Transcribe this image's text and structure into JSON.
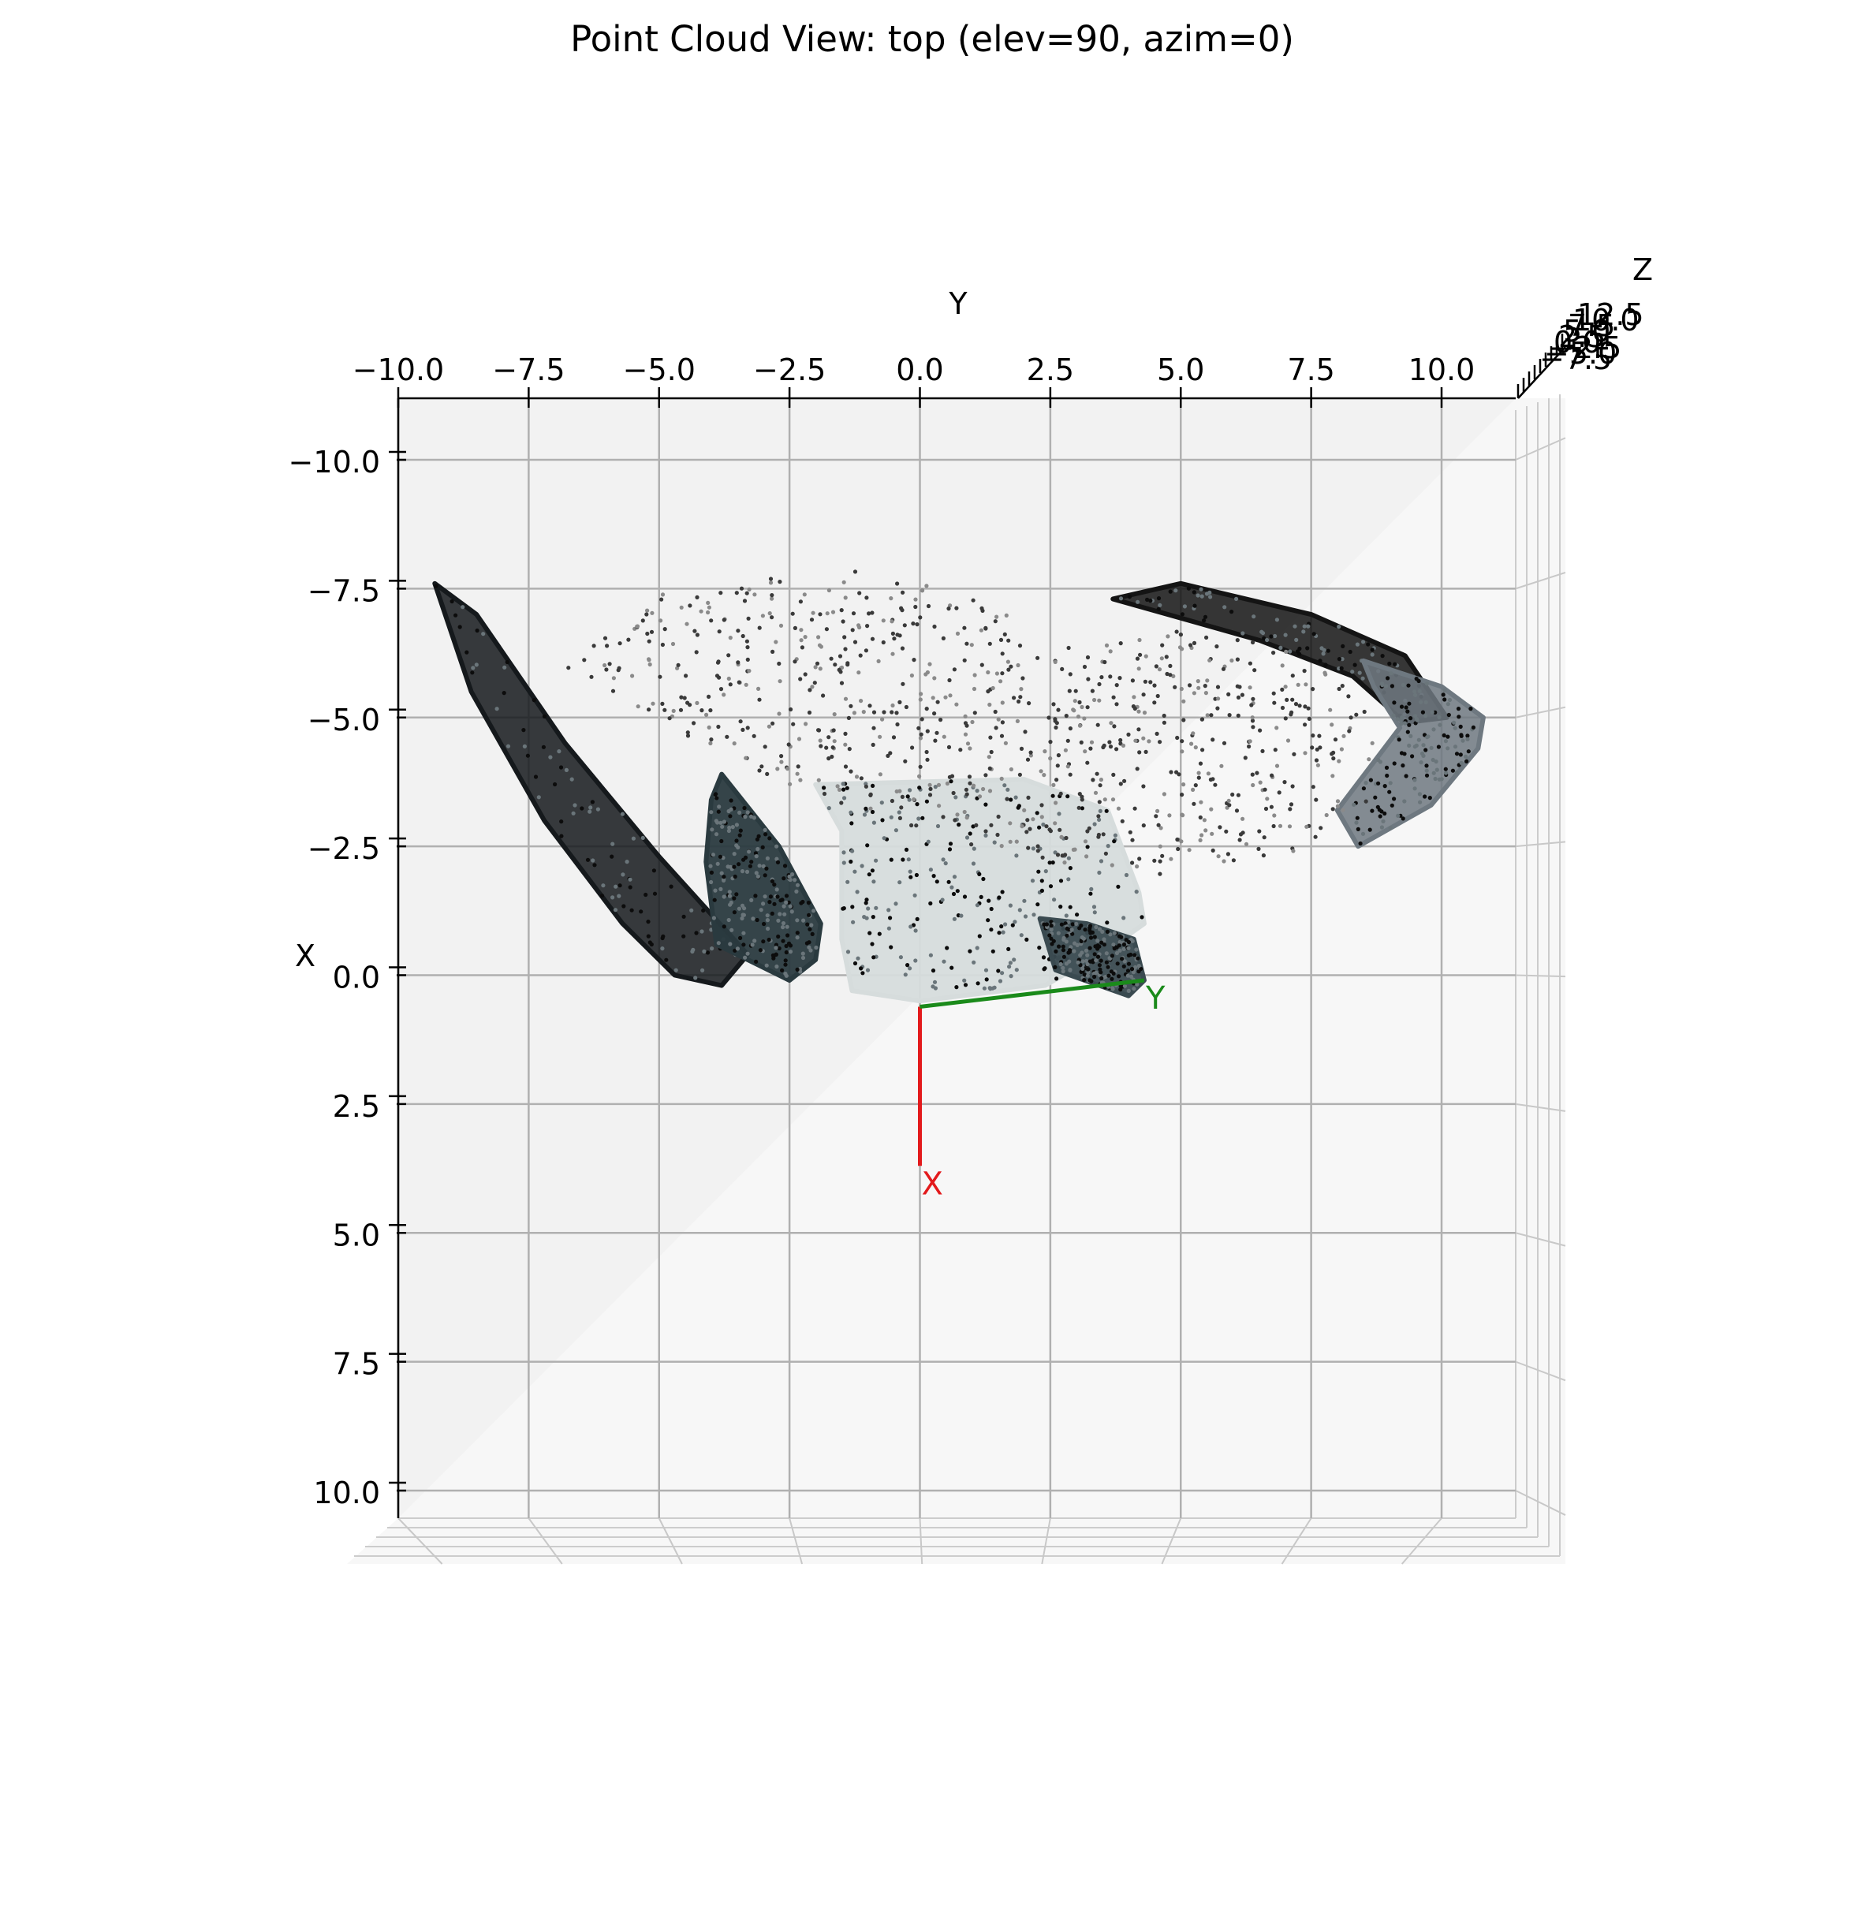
{
  "chart_data": {
    "type": "scatter",
    "title": "Point Cloud View: top (elev=90, azim=0)",
    "view": {
      "elev": 90,
      "azim": 0,
      "projection": "3d-top"
    },
    "grid": true,
    "axes": {
      "y": {
        "label": "Y",
        "ticks": [
          "−10.0",
          "−7.5",
          "−5.0",
          "−2.5",
          "0.0",
          "2.5",
          "5.0",
          "7.5",
          "10.0"
        ],
        "range": [
          -10.0,
          11.6
        ]
      },
      "x": {
        "label": "X",
        "ticks": [
          "−10.0",
          "−7.5",
          "−5.0",
          "−2.5",
          "0.0",
          "2.5",
          "5.0",
          "7.5",
          "10.0"
        ],
        "range": [
          -10.9,
          10.8
        ]
      },
      "z": {
        "label": "Z",
        "tick_labels_visible": [
          "12.5",
          "10.0",
          "7.5",
          "5.0",
          "2.5",
          "0.0",
          "−2.5",
          "−5.0",
          "−7.5"
        ]
      }
    },
    "origin_axes": [
      {
        "label": "X",
        "color": "#e31a1c",
        "from": [
          0,
          0
        ],
        "to": [
          3.7,
          0
        ]
      },
      {
        "label": "Y",
        "color": "#1a8a1a",
        "from": [
          0,
          0
        ],
        "to": [
          0.1,
          4.3
        ]
      }
    ],
    "point_cloud_regions": [
      {
        "name": "left-wall-band",
        "path": [
          [
            -7.6,
            -9.3
          ],
          [
            -5.5,
            -8.6
          ],
          [
            -3.0,
            -7.2
          ],
          [
            -1.0,
            -5.7
          ],
          [
            0.0,
            -4.7
          ],
          [
            0.2,
            -3.8
          ],
          [
            -0.4,
            -3.3
          ],
          [
            -2.3,
            -5.0
          ],
          [
            -4.5,
            -6.8
          ],
          [
            -7.0,
            -8.5
          ]
        ],
        "color": "#15191c",
        "density": "dense"
      },
      {
        "name": "car-left",
        "path": [
          [
            -3.9,
            -3.8
          ],
          [
            -2.5,
            -2.7
          ],
          [
            -1.0,
            -1.9
          ],
          [
            -0.3,
            -2.0
          ],
          [
            0.1,
            -2.5
          ],
          [
            -0.6,
            -3.9
          ],
          [
            -2.2,
            -4.1
          ],
          [
            -3.4,
            -4.0
          ]
        ],
        "color": "#2a3a3f",
        "density": "solid"
      },
      {
        "name": "ground-patch",
        "path": [
          [
            -3.7,
            -2.0
          ],
          [
            -3.8,
            2.0
          ],
          [
            -3.2,
            3.6
          ],
          [
            -1.6,
            4.2
          ],
          [
            -1.0,
            4.3
          ],
          [
            -0.5,
            3.6
          ],
          [
            0.2,
            2.4
          ],
          [
            0.5,
            0.0
          ],
          [
            0.3,
            -1.3
          ],
          [
            -0.7,
            -1.5
          ],
          [
            -2.8,
            -1.5
          ]
        ],
        "color": "#d6dcdc",
        "density": "solid"
      },
      {
        "name": "car-right",
        "path": [
          [
            -1.1,
            2.3
          ],
          [
            -0.1,
            2.6
          ],
          [
            0.4,
            4.0
          ],
          [
            0.1,
            4.3
          ],
          [
            -0.7,
            4.1
          ],
          [
            -1.0,
            3.2
          ]
        ],
        "color": "#3a4a50",
        "density": "solid"
      },
      {
        "name": "right-wall-band",
        "path": [
          [
            -7.3,
            3.7
          ],
          [
            -6.5,
            6.5
          ],
          [
            -5.8,
            8.3
          ],
          [
            -4.9,
            9.3
          ],
          [
            -5.0,
            10.1
          ],
          [
            -6.2,
            9.3
          ],
          [
            -7.0,
            7.5
          ],
          [
            -7.6,
            5.0
          ]
        ],
        "color": "#141414",
        "density": "dense"
      },
      {
        "name": "far-right-wall",
        "path": [
          [
            -6.1,
            8.5
          ],
          [
            -5.6,
            10.0
          ],
          [
            -5.0,
            10.8
          ],
          [
            -4.4,
            10.7
          ],
          [
            -3.3,
            9.8
          ],
          [
            -2.5,
            8.4
          ],
          [
            -3.2,
            8.0
          ],
          [
            -4.8,
            9.2
          ],
          [
            -5.6,
            8.7
          ]
        ],
        "color": "#6e7880",
        "density": "dense"
      },
      {
        "name": "sparse-canopy",
        "path": [
          [
            -7.6,
            -4.7
          ],
          [
            -7.9,
            -0.6
          ],
          [
            -6.8,
            2.4
          ],
          [
            -6.3,
            3.0
          ],
          [
            -6.8,
            5.2
          ],
          [
            -6.1,
            7.7
          ],
          [
            -4.9,
            8.8
          ],
          [
            -3.4,
            8.6
          ],
          [
            -2.4,
            7.2
          ],
          [
            -1.9,
            4.3
          ],
          [
            -2.5,
            1.0
          ],
          [
            -3.5,
            -2.0
          ],
          [
            -4.3,
            -4.0
          ],
          [
            -6.0,
            -6.8
          ]
        ],
        "color": "#555555",
        "density": "sparse"
      }
    ]
  }
}
